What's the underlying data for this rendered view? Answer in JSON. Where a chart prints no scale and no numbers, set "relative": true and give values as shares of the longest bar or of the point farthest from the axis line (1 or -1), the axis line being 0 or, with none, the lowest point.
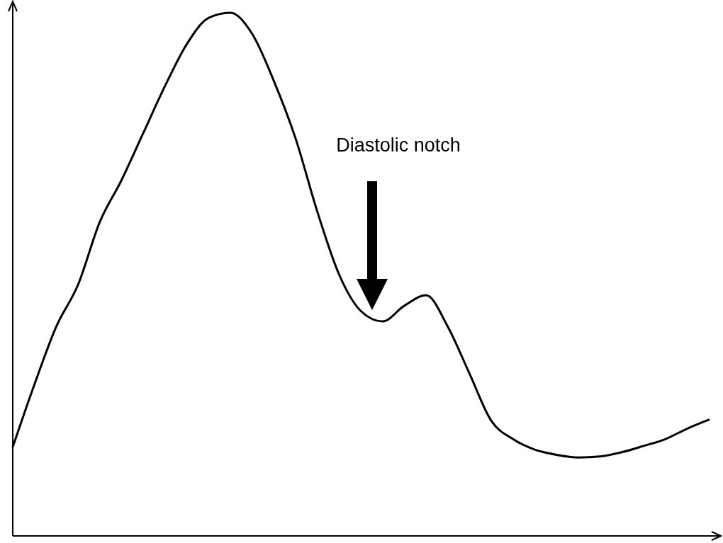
{
  "chart_data": {
    "type": "line",
    "relative": true,
    "annotations": [
      "Diastolic notch"
    ],
    "categories": [
      null,
      null,
      null,
      null,
      null,
      null,
      null,
      null,
      null,
      null,
      null,
      null,
      null,
      null,
      null,
      null,
      null,
      null,
      null,
      null,
      null,
      null,
      null,
      null,
      null,
      null,
      null,
      null,
      null,
      null,
      null,
      null,
      null
    ],
    "series": [
      {
        "color": "#000000",
        "values": [
          0.17,
          0.29,
          0.4,
          0.48,
          0.6,
          0.68,
          0.77,
          0.86,
          0.94,
          0.99,
          1.0,
          0.96,
          0.87,
          0.76,
          0.62,
          0.5,
          0.43,
          0.41,
          0.44,
          0.46,
          0.4,
          0.31,
          0.22,
          0.185,
          0.165,
          0.155,
          0.15,
          0.152,
          0.16,
          0.172,
          0.185,
          0.205,
          0.222
        ]
      }
    ]
  }
}
